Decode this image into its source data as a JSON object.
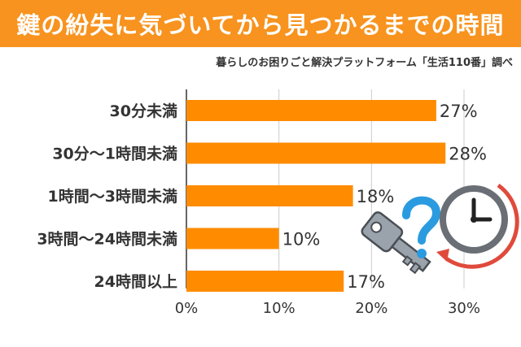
{
  "header": {
    "title": "鍵の紛失に気づいてから見つかるまでの時間",
    "source": "暮らしのお困りごと解決プラットフォーム「生活110番」調べ"
  },
  "colors": {
    "accent": "#f7931e",
    "bar": "#ff8c00",
    "grid": "#cccccc",
    "text": "#333333"
  },
  "chart_data": {
    "type": "bar",
    "orientation": "horizontal",
    "title": "鍵の紛失に気づいてから見つかるまでの時間",
    "categories": [
      "30分未満",
      "30分〜1時間未満",
      "1時間〜3時間未満",
      "3時間〜24時間未満",
      "24時間以上"
    ],
    "values": [
      27,
      28,
      18,
      10,
      17
    ],
    "value_labels": [
      "27%",
      "28%",
      "18%",
      "10%",
      "17%"
    ],
    "xlim": [
      0,
      30
    ],
    "xticks": [
      0,
      10,
      20,
      30
    ],
    "xtick_labels": [
      "0%",
      "10%",
      "20%",
      "30%"
    ],
    "grid": true
  },
  "illustration": {
    "icons": [
      "key-icon",
      "question-mark-icon",
      "clock-icon"
    ]
  }
}
